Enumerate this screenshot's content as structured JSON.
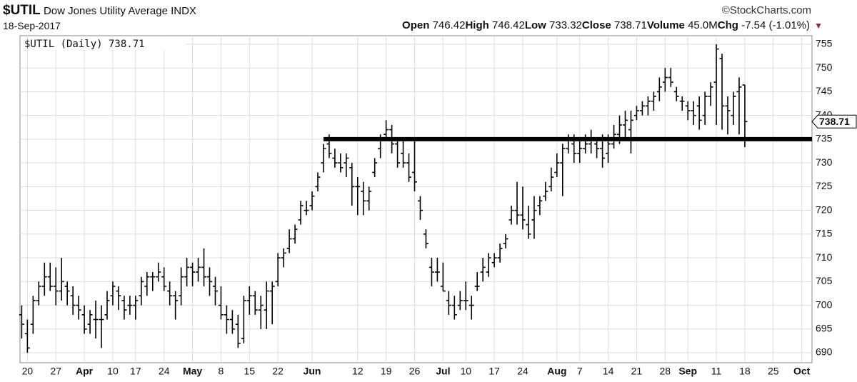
{
  "header": {
    "symbol": "$UTIL",
    "name": "Dow Jones Utility Average INDX",
    "date": "18-Sep-2017",
    "source": "©StockCharts.com",
    "stats": [
      {
        "label": "Open",
        "value": "746.42"
      },
      {
        "label": "High",
        "value": "746.42"
      },
      {
        "label": "Low",
        "value": "733.32"
      },
      {
        "label": "Close",
        "value": "738.71"
      },
      {
        "label": "Volume",
        "value": "45.0M"
      },
      {
        "label": "Chg",
        "value": "-7.54 (-1.01%)"
      }
    ]
  },
  "chart_data": {
    "type": "ohlc",
    "legend": "$UTIL (Daily) 738.71",
    "last_label": "738.71",
    "last_value": 738.71,
    "color": "#000000",
    "grid": true,
    "xlim": [
      -0.3,
      138.8
    ],
    "ylim": [
      687.9,
      756.8
    ],
    "yticks": [
      690,
      695,
      700,
      705,
      710,
      715,
      720,
      725,
      730,
      735,
      740,
      745,
      750,
      755
    ],
    "xticks": [
      {
        "value": 1,
        "label": "20"
      },
      {
        "value": 6,
        "label": "27"
      },
      {
        "value": 11,
        "label": "Apr"
      },
      {
        "value": 16,
        "label": "10"
      },
      {
        "value": 20,
        "label": "17"
      },
      {
        "value": 25,
        "label": "24"
      },
      {
        "value": 30,
        "label": "May"
      },
      {
        "value": 35,
        "label": "8"
      },
      {
        "value": 40,
        "label": "15"
      },
      {
        "value": 45,
        "label": "22"
      },
      {
        "value": 51,
        "label": "Jun"
      },
      {
        "value": 59,
        "label": "12"
      },
      {
        "value": 64,
        "label": "19"
      },
      {
        "value": 69,
        "label": "26"
      },
      {
        "value": 74,
        "label": "Jul"
      },
      {
        "value": 78,
        "label": "10"
      },
      {
        "value": 83,
        "label": "17"
      },
      {
        "value": 88,
        "label": "24"
      },
      {
        "value": 94,
        "label": "Aug"
      },
      {
        "value": 98,
        "label": "7"
      },
      {
        "value": 103,
        "label": "14"
      },
      {
        "value": 108,
        "label": "21"
      },
      {
        "value": 113,
        "label": "28"
      },
      {
        "value": 117,
        "label": "Sep"
      },
      {
        "value": 122,
        "label": "11"
      },
      {
        "value": 127,
        "label": "18"
      },
      {
        "value": 132,
        "label": "25"
      },
      {
        "value": 137,
        "label": "Oct"
      }
    ],
    "trendline": {
      "y": 735,
      "x_start": 53
    },
    "x": [
      0,
      1,
      2,
      3,
      4,
      5,
      6,
      7,
      8,
      9,
      10,
      11,
      12,
      13,
      14,
      15,
      16,
      17,
      18,
      19,
      20,
      21,
      22,
      23,
      24,
      25,
      26,
      27,
      28,
      29,
      30,
      31,
      32,
      33,
      34,
      35,
      36,
      37,
      38,
      39,
      40,
      41,
      42,
      43,
      44,
      45,
      46,
      47,
      48,
      49,
      50,
      51,
      52,
      53,
      54,
      55,
      56,
      57,
      58,
      59,
      60,
      61,
      62,
      63,
      64,
      65,
      66,
      67,
      68,
      69,
      70,
      71,
      72,
      73,
      74,
      75,
      76,
      77,
      78,
      79,
      80,
      81,
      82,
      83,
      84,
      85,
      86,
      87,
      88,
      89,
      90,
      91,
      92,
      93,
      94,
      95,
      96,
      97,
      98,
      99,
      100,
      101,
      102,
      103,
      104,
      105,
      106,
      107,
      108,
      109,
      110,
      111,
      112,
      113,
      114,
      115,
      116,
      117,
      118,
      119,
      120,
      121,
      122,
      123,
      124,
      125,
      126,
      127
    ],
    "open": [
      698,
      694,
      696,
      701,
      704,
      706,
      704,
      703,
      704,
      702,
      700,
      698,
      696,
      697,
      697,
      698,
      702,
      703,
      701,
      700,
      700,
      702,
      704,
      706,
      706,
      706,
      703,
      702,
      702,
      706,
      708,
      707,
      708,
      706,
      704,
      700,
      698,
      697,
      696,
      693,
      701,
      702,
      699,
      699,
      703,
      705,
      710,
      712,
      714,
      718,
      720,
      721,
      725,
      730,
      734,
      731,
      730,
      730,
      729,
      725,
      724,
      722,
      728,
      733,
      736,
      737,
      734,
      732,
      730,
      728,
      722,
      715,
      708,
      707,
      704,
      701,
      700,
      700,
      701,
      700,
      704,
      707,
      707,
      709,
      710,
      713,
      718,
      720,
      719,
      717,
      718,
      721,
      723,
      725,
      728,
      730,
      733,
      734,
      732,
      733,
      734,
      734,
      733,
      732,
      734,
      736,
      738,
      737,
      740,
      741,
      742,
      743,
      745,
      747,
      748,
      745,
      743,
      742,
      741,
      742,
      740,
      744,
      747,
      752,
      742,
      740,
      745,
      746.42
    ],
    "high": [
      700,
      697,
      702,
      705,
      709,
      709,
      708,
      710,
      705,
      704,
      702,
      700,
      699,
      701,
      700,
      703,
      705,
      704,
      702,
      702,
      702,
      706,
      707,
      707,
      709,
      708,
      705,
      703,
      708,
      710,
      709,
      710,
      712,
      708,
      706,
      704,
      700,
      699,
      698,
      702,
      704,
      703,
      702,
      705,
      705,
      711,
      712,
      716,
      717,
      722,
      722,
      724,
      728,
      734,
      736,
      733,
      732,
      732,
      730,
      727,
      726,
      725,
      731,
      736,
      739,
      738,
      735,
      735,
      732,
      735,
      723,
      716,
      710,
      710,
      709,
      703,
      702,
      703,
      705,
      702,
      707,
      710,
      711,
      711,
      713,
      715,
      721,
      726,
      725,
      721,
      723,
      723,
      726,
      729,
      732,
      734,
      736,
      736,
      735,
      736,
      737,
      735,
      736,
      736,
      738,
      740,
      741,
      741,
      742,
      743,
      744,
      745,
      748,
      750,
      750,
      746,
      744,
      743,
      743,
      744,
      745,
      747,
      755,
      753,
      744,
      745,
      748,
      746.42
    ],
    "low": [
      693,
      690,
      694,
      700,
      702,
      703,
      700,
      701,
      700,
      698,
      697,
      694,
      694,
      693,
      691,
      697,
      700,
      699,
      697,
      698,
      697,
      700,
      702,
      703,
      705,
      703,
      700,
      697,
      700,
      704,
      704,
      705,
      704,
      702,
      700,
      697,
      694,
      694,
      691,
      692,
      698,
      698,
      695,
      695,
      696,
      704,
      708,
      711,
      713,
      717,
      719,
      720,
      724,
      728,
      731,
      729,
      728,
      727,
      721,
      719,
      719,
      720,
      727,
      731,
      735,
      732,
      729,
      729,
      726,
      724,
      718,
      712,
      704,
      705,
      703,
      698,
      697,
      699,
      699,
      697,
      703,
      705,
      706,
      708,
      709,
      712,
      717,
      717,
      716,
      714,
      714,
      719,
      722,
      724,
      727,
      723,
      732,
      730,
      730,
      732,
      732,
      731,
      729,
      730,
      733,
      734,
      735,
      732,
      739,
      740,
      740,
      741,
      743,
      745,
      746,
      743,
      741,
      739,
      738,
      737,
      738,
      742,
      738,
      737,
      736,
      738,
      736,
      733.32
    ],
    "close": [
      696,
      691,
      701,
      704,
      706,
      704,
      703,
      705,
      703,
      700,
      699,
      695,
      698,
      697,
      697,
      701,
      704,
      702,
      699,
      700,
      701,
      705,
      706,
      706,
      707,
      704,
      702,
      701,
      706,
      708,
      707,
      708,
      706,
      705,
      703,
      698,
      697,
      695,
      692,
      701,
      702,
      699,
      700,
      703,
      704,
      710,
      711,
      714,
      716,
      721,
      720,
      723,
      727,
      733,
      732,
      730,
      729,
      731,
      725,
      725,
      722,
      724,
      730,
      735,
      737,
      734,
      730,
      730,
      727,
      726,
      720,
      713,
      707,
      707,
      703,
      700,
      698,
      701,
      701,
      700,
      704,
      708,
      710,
      710,
      712,
      714,
      720,
      719,
      718,
      715,
      720,
      722,
      724,
      727,
      730,
      733,
      735,
      732,
      733,
      734,
      735,
      733,
      731,
      734,
      736,
      738,
      739,
      739,
      741,
      742,
      743,
      744,
      746,
      748,
      747,
      744,
      743,
      741,
      740,
      739,
      744,
      746,
      754,
      742,
      741,
      744,
      746,
      738.71
    ]
  }
}
